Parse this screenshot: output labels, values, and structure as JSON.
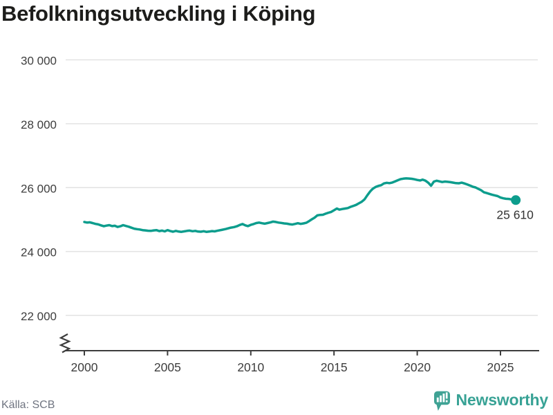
{
  "title": "Befolkningsutveckling i Köping",
  "source": "Källa: SCB",
  "branding": {
    "name": "Newsworthy",
    "icon": "newsworthy-speech-bubble-chart-icon",
    "color": "#3fa294"
  },
  "colors": {
    "line": "#0d9d8d",
    "grid": "#e2e2e2",
    "axis": "#3d3d3d",
    "tick_text": "#3d3d3d",
    "end_label_text": "#333333",
    "title_text": "#1d1d1b",
    "source_text": "#6f7480"
  },
  "chart_data": {
    "type": "line",
    "title": "Befolkningsutveckling i Köping",
    "xlabel": "",
    "ylabel": "",
    "grid": "horizontal",
    "axis_break_at_origin": true,
    "legend": "none",
    "xlim": [
      1998.9,
      2027.3
    ],
    "ylim": [
      22000,
      30000
    ],
    "x_ticks": [
      2000,
      2005,
      2010,
      2015,
      2020,
      2025
    ],
    "x_tick_labels": [
      "2000",
      "2005",
      "2010",
      "2015",
      "2020",
      "2025"
    ],
    "y_ticks": [
      30000,
      28000,
      26000,
      24000,
      22000
    ],
    "y_tick_labels": [
      "30 000",
      "28 000",
      "26 000",
      "24 000",
      "22 000"
    ],
    "end_label": "25 610",
    "end_value": 25610,
    "series": [
      {
        "name": "Befolkning",
        "color": "#0d9d8d",
        "points": [
          [
            2000.0,
            24925
          ],
          [
            2000.17,
            24905
          ],
          [
            2000.33,
            24915
          ],
          [
            2000.5,
            24890
          ],
          [
            2000.67,
            24865
          ],
          [
            2000.83,
            24850
          ],
          [
            2001.0,
            24820
          ],
          [
            2001.17,
            24790
          ],
          [
            2001.33,
            24810
          ],
          [
            2001.5,
            24825
          ],
          [
            2001.67,
            24795
          ],
          [
            2001.83,
            24805
          ],
          [
            2002.0,
            24770
          ],
          [
            2002.17,
            24790
          ],
          [
            2002.33,
            24825
          ],
          [
            2002.5,
            24800
          ],
          [
            2002.67,
            24775
          ],
          [
            2002.83,
            24745
          ],
          [
            2003.0,
            24715
          ],
          [
            2003.17,
            24700
          ],
          [
            2003.33,
            24690
          ],
          [
            2003.5,
            24670
          ],
          [
            2003.67,
            24660
          ],
          [
            2003.83,
            24650
          ],
          [
            2004.0,
            24645
          ],
          [
            2004.17,
            24660
          ],
          [
            2004.33,
            24670
          ],
          [
            2004.5,
            24640
          ],
          [
            2004.67,
            24655
          ],
          [
            2004.83,
            24630
          ],
          [
            2005.0,
            24670
          ],
          [
            2005.17,
            24640
          ],
          [
            2005.33,
            24620
          ],
          [
            2005.5,
            24645
          ],
          [
            2005.67,
            24625
          ],
          [
            2005.83,
            24615
          ],
          [
            2006.0,
            24630
          ],
          [
            2006.17,
            24645
          ],
          [
            2006.33,
            24655
          ],
          [
            2006.5,
            24635
          ],
          [
            2006.67,
            24645
          ],
          [
            2006.83,
            24625
          ],
          [
            2007.0,
            24620
          ],
          [
            2007.17,
            24635
          ],
          [
            2007.33,
            24615
          ],
          [
            2007.5,
            24625
          ],
          [
            2007.67,
            24640
          ],
          [
            2007.83,
            24630
          ],
          [
            2008.0,
            24650
          ],
          [
            2008.25,
            24675
          ],
          [
            2008.5,
            24705
          ],
          [
            2008.75,
            24740
          ],
          [
            2009.0,
            24765
          ],
          [
            2009.17,
            24790
          ],
          [
            2009.33,
            24830
          ],
          [
            2009.5,
            24860
          ],
          [
            2009.67,
            24820
          ],
          [
            2009.83,
            24795
          ],
          [
            2010.0,
            24835
          ],
          [
            2010.17,
            24860
          ],
          [
            2010.33,
            24890
          ],
          [
            2010.5,
            24905
          ],
          [
            2010.67,
            24885
          ],
          [
            2010.83,
            24870
          ],
          [
            2011.0,
            24890
          ],
          [
            2011.17,
            24910
          ],
          [
            2011.33,
            24935
          ],
          [
            2011.5,
            24925
          ],
          [
            2011.67,
            24905
          ],
          [
            2011.83,
            24895
          ],
          [
            2012.0,
            24880
          ],
          [
            2012.17,
            24870
          ],
          [
            2012.33,
            24855
          ],
          [
            2012.5,
            24845
          ],
          [
            2012.67,
            24865
          ],
          [
            2012.83,
            24885
          ],
          [
            2013.0,
            24865
          ],
          [
            2013.17,
            24880
          ],
          [
            2013.33,
            24900
          ],
          [
            2013.5,
            24950
          ],
          [
            2013.67,
            25010
          ],
          [
            2013.83,
            25060
          ],
          [
            2014.0,
            25130
          ],
          [
            2014.17,
            25145
          ],
          [
            2014.33,
            25150
          ],
          [
            2014.5,
            25185
          ],
          [
            2014.67,
            25215
          ],
          [
            2014.83,
            25240
          ],
          [
            2015.0,
            25290
          ],
          [
            2015.17,
            25345
          ],
          [
            2015.33,
            25310
          ],
          [
            2015.5,
            25330
          ],
          [
            2015.67,
            25345
          ],
          [
            2015.83,
            25360
          ],
          [
            2016.0,
            25400
          ],
          [
            2016.17,
            25430
          ],
          [
            2016.33,
            25460
          ],
          [
            2016.5,
            25510
          ],
          [
            2016.67,
            25560
          ],
          [
            2016.83,
            25630
          ],
          [
            2017.0,
            25760
          ],
          [
            2017.17,
            25880
          ],
          [
            2017.33,
            25965
          ],
          [
            2017.5,
            26020
          ],
          [
            2017.67,
            26055
          ],
          [
            2017.83,
            26075
          ],
          [
            2018.0,
            26130
          ],
          [
            2018.17,
            26150
          ],
          [
            2018.33,
            26140
          ],
          [
            2018.5,
            26160
          ],
          [
            2018.67,
            26195
          ],
          [
            2018.83,
            26230
          ],
          [
            2019.0,
            26265
          ],
          [
            2019.17,
            26280
          ],
          [
            2019.33,
            26290
          ],
          [
            2019.5,
            26285
          ],
          [
            2019.67,
            26275
          ],
          [
            2019.83,
            26260
          ],
          [
            2020.0,
            26240
          ],
          [
            2020.17,
            26225
          ],
          [
            2020.33,
            26250
          ],
          [
            2020.5,
            26215
          ],
          [
            2020.67,
            26150
          ],
          [
            2020.83,
            26060
          ],
          [
            2021.0,
            26190
          ],
          [
            2021.17,
            26215
          ],
          [
            2021.33,
            26195
          ],
          [
            2021.5,
            26175
          ],
          [
            2021.67,
            26190
          ],
          [
            2021.83,
            26180
          ],
          [
            2022.0,
            26170
          ],
          [
            2022.17,
            26155
          ],
          [
            2022.33,
            26140
          ],
          [
            2022.5,
            26135
          ],
          [
            2022.67,
            26155
          ],
          [
            2022.83,
            26130
          ],
          [
            2023.0,
            26100
          ],
          [
            2023.17,
            26065
          ],
          [
            2023.33,
            26030
          ],
          [
            2023.5,
            26005
          ],
          [
            2023.67,
            25960
          ],
          [
            2023.83,
            25920
          ],
          [
            2024.0,
            25855
          ],
          [
            2024.17,
            25830
          ],
          [
            2024.33,
            25805
          ],
          [
            2024.5,
            25775
          ],
          [
            2024.67,
            25755
          ],
          [
            2024.83,
            25735
          ],
          [
            2025.0,
            25690
          ],
          [
            2025.17,
            25665
          ],
          [
            2025.33,
            25650
          ],
          [
            2025.5,
            25645
          ],
          [
            2025.67,
            25630
          ],
          [
            2025.92,
            25610
          ]
        ]
      }
    ]
  }
}
